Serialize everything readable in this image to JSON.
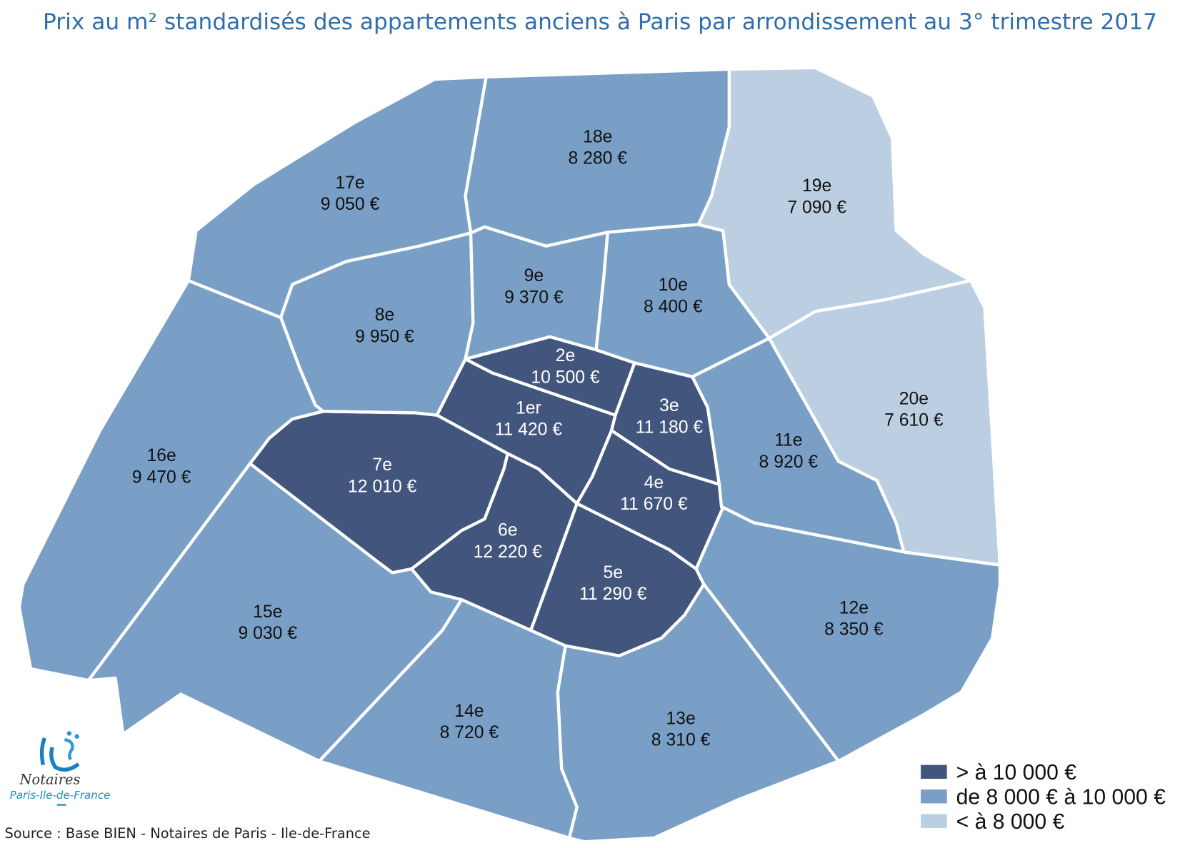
{
  "title": "Prix au m² standardisés des appartements anciens à Paris par arrondissement au 3° trimestre 2017",
  "colors": {
    "title": "#2f6fad",
    "high": "#42557d",
    "mid": "#7a9fc6",
    "low": "#bccfe2"
  },
  "regions": [
    {
      "id": "1",
      "name": "1er",
      "price": "11 420 €",
      "class": "high"
    },
    {
      "id": "2",
      "name": "2e",
      "price": "10 500 €",
      "class": "high"
    },
    {
      "id": "3",
      "name": "3e",
      "price": "11 180 €",
      "class": "high"
    },
    {
      "id": "4",
      "name": "4e",
      "price": "11 670 €",
      "class": "high"
    },
    {
      "id": "5",
      "name": "5e",
      "price": "11 290 €",
      "class": "high"
    },
    {
      "id": "6",
      "name": "6e",
      "price": "12 220 €",
      "class": "high"
    },
    {
      "id": "7",
      "name": "7e",
      "price": "12 010 €",
      "class": "high"
    },
    {
      "id": "8",
      "name": "8e",
      "price": "9 950 €",
      "class": "mid"
    },
    {
      "id": "9",
      "name": "9e",
      "price": "9 370 €",
      "class": "mid"
    },
    {
      "id": "10",
      "name": "10e",
      "price": "8 400 €",
      "class": "mid"
    },
    {
      "id": "11",
      "name": "11e",
      "price": "8 920 €",
      "class": "mid"
    },
    {
      "id": "12",
      "name": "12e",
      "price": "8 350 €",
      "class": "mid"
    },
    {
      "id": "13",
      "name": "13e",
      "price": "8 310 €",
      "class": "mid"
    },
    {
      "id": "14",
      "name": "14e",
      "price": "8 720 €",
      "class": "mid"
    },
    {
      "id": "15",
      "name": "15e",
      "price": "9 030 €",
      "class": "mid"
    },
    {
      "id": "16",
      "name": "16e",
      "price": "9 470 €",
      "class": "mid"
    },
    {
      "id": "17",
      "name": "17e",
      "price": "9 050 €",
      "class": "mid"
    },
    {
      "id": "18",
      "name": "18e",
      "price": "8 280 €",
      "class": "mid"
    },
    {
      "id": "19",
      "name": "19e",
      "price": "7 090 €",
      "class": "low"
    },
    {
      "id": "20",
      "name": "20e",
      "price": "7 610 €",
      "class": "low"
    }
  ],
  "legend": [
    {
      "label": "> à 10 000 €",
      "class": "high"
    },
    {
      "label": "de 8 000 € à 10 000 €",
      "class": "mid"
    },
    {
      "label": "< à 8 000 €",
      "class": "low"
    }
  ],
  "logo": {
    "text1": "Notaires",
    "text2": "Paris-Ile-de-France"
  },
  "source": "Source : Base BIEN - Notaires de Paris - Ile-de-France"
}
